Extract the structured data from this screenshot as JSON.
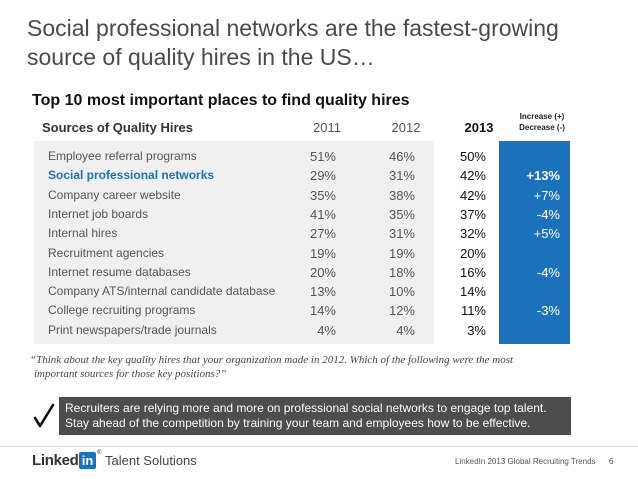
{
  "title_line1": "Social professional networks are the fastest-growing",
  "title_line2": "source of quality hires in the US…",
  "chart_data": {
    "type": "table",
    "title": "Top 10 most important places to find quality hires",
    "row_header": "Sources of Quality Hires",
    "years": [
      "2011",
      "2012",
      "2013"
    ],
    "change_header_line1": "Increase (+)",
    "change_header_line2": "Decrease (-)",
    "rows": [
      {
        "source": "Employee referral programs",
        "values": [
          "51%",
          "46%",
          "50%"
        ],
        "change": ""
      },
      {
        "source": "Social professional networks",
        "values": [
          "29%",
          "31%",
          "42%"
        ],
        "change": "+13%",
        "highlight": true
      },
      {
        "source": "Company career website",
        "values": [
          "35%",
          "38%",
          "42%"
        ],
        "change": "+7%"
      },
      {
        "source": "Internet job boards",
        "values": [
          "41%",
          "35%",
          "37%"
        ],
        "change": "-4%"
      },
      {
        "source": "Internal hires",
        "values": [
          "27%",
          "31%",
          "32%"
        ],
        "change": "+5%"
      },
      {
        "source": "Recruitment agencies",
        "values": [
          "19%",
          "19%",
          "20%"
        ],
        "change": ""
      },
      {
        "source": "Internet resume databases",
        "values": [
          "20%",
          "18%",
          "16%"
        ],
        "change": "-4%"
      },
      {
        "source": "Company ATS/internal candidate database",
        "values": [
          "13%",
          "10%",
          "14%"
        ],
        "change": ""
      },
      {
        "source": "College recruiting programs",
        "values": [
          "14%",
          "12%",
          "11%"
        ],
        "change": "-3%"
      },
      {
        "source": "Print newspapers/trade journals",
        "values": [
          "4%",
          "4%",
          "3%"
        ],
        "change": ""
      }
    ]
  },
  "quote_line1": "“Think about the key quality hires that your organization made in 2012. Which of the following were the most",
  "quote_line2": "important sources for those key positions?”",
  "callout_line1": "Recruiters are relying more and more on professional social networks to engage top talent.",
  "callout_line2": "Stay ahead of the competition by training your team and employees how to be effective.",
  "logo_linked": "Linked",
  "logo_in": "in",
  "logo_reg": "®",
  "logo_suffix": "Talent Solutions",
  "footer_source": "LinkedIn 2013 Global Recruiting Trends",
  "page_number": "6",
  "colors": {
    "accent": "#1c72ba",
    "callout_bg": "#4d4d4d",
    "table_bg": "#f0f0f0"
  },
  "icons": {
    "callout": "checkmark-icon"
  }
}
